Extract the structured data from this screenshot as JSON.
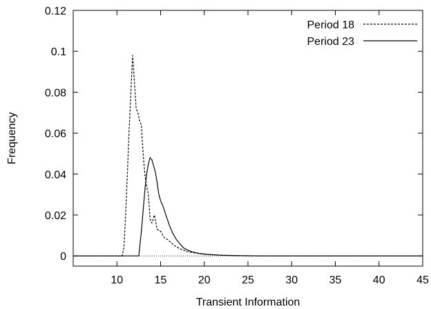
{
  "chart_data": {
    "type": "line",
    "title": "",
    "xlabel": "Transient Information",
    "ylabel": "Frequency",
    "xlim": [
      5,
      45
    ],
    "ylim": [
      -0.005,
      0.12
    ],
    "x_ticks": [
      10,
      15,
      20,
      25,
      30,
      35,
      40,
      45
    ],
    "x_tick_labels": [
      "10",
      "15",
      "20",
      "25",
      "30",
      "35",
      "40",
      "45"
    ],
    "y_ticks": [
      0,
      0.02,
      0.04,
      0.06,
      0.08,
      0.1,
      0.12
    ],
    "y_tick_labels": [
      "0",
      "0.02",
      "0.04",
      "0.06",
      "0.08",
      "0.1",
      "0.12"
    ],
    "grid": false,
    "zero_line": true,
    "legend_position": "top-right",
    "series": [
      {
        "name": "Period 18",
        "style": "dashed",
        "color": "#000000",
        "points": [
          [
            5,
            0
          ],
          [
            10.6,
            0
          ],
          [
            10.8,
            0.004
          ],
          [
            11.0,
            0.02
          ],
          [
            11.2,
            0.04
          ],
          [
            11.4,
            0.062
          ],
          [
            11.6,
            0.08
          ],
          [
            11.8,
            0.098
          ],
          [
            12.0,
            0.085
          ],
          [
            12.2,
            0.072
          ],
          [
            12.4,
            0.07
          ],
          [
            12.6,
            0.066
          ],
          [
            12.8,
            0.064
          ],
          [
            13.0,
            0.05
          ],
          [
            13.2,
            0.04
          ],
          [
            13.4,
            0.034
          ],
          [
            13.6,
            0.03
          ],
          [
            13.8,
            0.018
          ],
          [
            14.0,
            0.016
          ],
          [
            14.3,
            0.02
          ],
          [
            14.6,
            0.013
          ],
          [
            15.0,
            0.012
          ],
          [
            15.4,
            0.009
          ],
          [
            15.8,
            0.008
          ],
          [
            16.2,
            0.0065
          ],
          [
            16.6,
            0.005
          ],
          [
            17.0,
            0.004
          ],
          [
            17.5,
            0.003
          ],
          [
            18.0,
            0.0022
          ],
          [
            19.0,
            0.0014
          ],
          [
            20.0,
            0.0008
          ],
          [
            21.0,
            0.0005
          ],
          [
            22.5,
            0.0003
          ],
          [
            24.0,
            0.0001
          ],
          [
            26.0,
            0
          ],
          [
            45,
            0
          ]
        ]
      },
      {
        "name": "Period 23",
        "style": "solid",
        "color": "#000000",
        "points": [
          [
            5,
            0
          ],
          [
            12.5,
            0
          ],
          [
            12.8,
            0.012
          ],
          [
            13.0,
            0.022
          ],
          [
            13.2,
            0.032
          ],
          [
            13.4,
            0.04
          ],
          [
            13.6,
            0.045
          ],
          [
            13.8,
            0.048
          ],
          [
            14.0,
            0.047
          ],
          [
            14.2,
            0.044
          ],
          [
            14.4,
            0.041
          ],
          [
            14.6,
            0.036
          ],
          [
            14.8,
            0.03
          ],
          [
            15.0,
            0.027
          ],
          [
            15.3,
            0.024
          ],
          [
            15.6,
            0.02
          ],
          [
            16.0,
            0.015
          ],
          [
            16.4,
            0.011
          ],
          [
            16.8,
            0.008
          ],
          [
            17.2,
            0.006
          ],
          [
            17.6,
            0.004
          ],
          [
            18.0,
            0.003
          ],
          [
            18.6,
            0.002
          ],
          [
            19.4,
            0.0012
          ],
          [
            20.5,
            0.0007
          ],
          [
            22.0,
            0.0003
          ],
          [
            24.0,
            0.0001
          ],
          [
            27.0,
            0
          ],
          [
            45,
            0
          ]
        ]
      }
    ]
  }
}
